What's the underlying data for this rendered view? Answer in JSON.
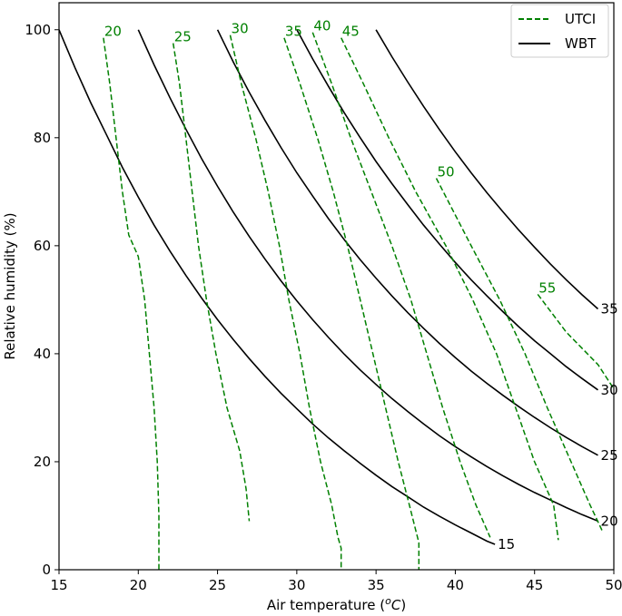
{
  "chart_data": {
    "type": "line",
    "title": "",
    "xlabel": "Air temperature (",
    "xlabel_unit_sup": "o",
    "xlabel_unit": "C)",
    "ylabel": "Relative humidity (%)",
    "xlim": [
      15,
      50
    ],
    "ylim": [
      0,
      105
    ],
    "xticks": [
      15,
      20,
      25,
      30,
      35,
      40,
      45,
      50
    ],
    "yticks": [
      0,
      20,
      40,
      60,
      80,
      100
    ],
    "legend": {
      "placement": "top-right",
      "entries": [
        {
          "name": "UTCI",
          "style": "dashed",
          "color": "#008000"
        },
        {
          "name": "WBT",
          "style": "solid",
          "color": "#000000"
        }
      ]
    },
    "colors": {
      "utci": "#008000",
      "wbt": "#000000"
    },
    "wbt_series": [
      {
        "name": "15",
        "label": "15",
        "points": [
          [
            15,
            100
          ],
          [
            16,
            93
          ],
          [
            17,
            86.5
          ],
          [
            18,
            80.5
          ],
          [
            19,
            74.5
          ],
          [
            20,
            69
          ],
          [
            21,
            63.8
          ],
          [
            22,
            59
          ],
          [
            23,
            54.5
          ],
          [
            24,
            50.3
          ],
          [
            25,
            46.3
          ],
          [
            26,
            42.6
          ],
          [
            27,
            39.1
          ],
          [
            28,
            35.8
          ],
          [
            29,
            32.7
          ],
          [
            30,
            29.8
          ],
          [
            31,
            27
          ],
          [
            32,
            24.4
          ],
          [
            33,
            22
          ],
          [
            34,
            19.7
          ],
          [
            35,
            17.5
          ],
          [
            36,
            15.4
          ],
          [
            37,
            13.5
          ],
          [
            38,
            11.6
          ],
          [
            39,
            9.9
          ],
          [
            40,
            8.3
          ],
          [
            41,
            6.8
          ],
          [
            42,
            5.3
          ],
          [
            42.5,
            4.7
          ]
        ]
      },
      {
        "name": "20",
        "label": "20",
        "points": [
          [
            20,
            100
          ],
          [
            21,
            93.5
          ],
          [
            22,
            87.4
          ],
          [
            23,
            81.6
          ],
          [
            24,
            76.1
          ],
          [
            25,
            71
          ],
          [
            26,
            66.2
          ],
          [
            27,
            61.7
          ],
          [
            28,
            57.5
          ],
          [
            29,
            53.5
          ],
          [
            30,
            49.8
          ],
          [
            31,
            46.3
          ],
          [
            32,
            43
          ],
          [
            33,
            39.9
          ],
          [
            34,
            37
          ],
          [
            35,
            34.3
          ],
          [
            36,
            31.7
          ],
          [
            37,
            29.3
          ],
          [
            38,
            27
          ],
          [
            39,
            24.8
          ],
          [
            40,
            22.8
          ],
          [
            41,
            20.9
          ],
          [
            42,
            19.1
          ],
          [
            43,
            17.4
          ],
          [
            44,
            15.8
          ],
          [
            45,
            14.3
          ],
          [
            46,
            12.9
          ],
          [
            47,
            11.5
          ],
          [
            48,
            10.2
          ],
          [
            49,
            9
          ]
        ]
      },
      {
        "name": "25",
        "label": "25",
        "points": [
          [
            25,
            100
          ],
          [
            26,
            94
          ],
          [
            27,
            88.4
          ],
          [
            28,
            83.2
          ],
          [
            29,
            78.2
          ],
          [
            30,
            73.5
          ],
          [
            31,
            69.2
          ],
          [
            32,
            65
          ],
          [
            33,
            61.1
          ],
          [
            34,
            57.4
          ],
          [
            35,
            54
          ],
          [
            36,
            50.7
          ],
          [
            37,
            47.6
          ],
          [
            38,
            44.7
          ],
          [
            39,
            41.9
          ],
          [
            40,
            39.3
          ],
          [
            41,
            36.8
          ],
          [
            42,
            34.5
          ],
          [
            43,
            32.3
          ],
          [
            44,
            30.2
          ],
          [
            45,
            28.2
          ],
          [
            46,
            26.3
          ],
          [
            47,
            24.5
          ],
          [
            48,
            22.8
          ],
          [
            49,
            21.2
          ]
        ]
      },
      {
        "name": "30",
        "label": "30",
        "points": [
          [
            30,
            100
          ],
          [
            31,
            94.6
          ],
          [
            32,
            89.5
          ],
          [
            33,
            84.6
          ],
          [
            34,
            80
          ],
          [
            35,
            75.6
          ],
          [
            36,
            71.5
          ],
          [
            37,
            67.6
          ],
          [
            38,
            63.8
          ],
          [
            39,
            60.3
          ],
          [
            40,
            56.9
          ],
          [
            41,
            53.7
          ],
          [
            42,
            50.7
          ],
          [
            43,
            47.8
          ],
          [
            44,
            45
          ],
          [
            45,
            42.4
          ],
          [
            46,
            40
          ],
          [
            47,
            37.6
          ],
          [
            48,
            35.4
          ],
          [
            49,
            33.3
          ]
        ]
      },
      {
        "name": "35",
        "label": "35",
        "points": [
          [
            35,
            100
          ],
          [
            36,
            95
          ],
          [
            37,
            90.3
          ],
          [
            38,
            85.8
          ],
          [
            39,
            81.5
          ],
          [
            40,
            77.4
          ],
          [
            41,
            73.5
          ],
          [
            42,
            69.8
          ],
          [
            43,
            66.3
          ],
          [
            44,
            62.9
          ],
          [
            45,
            59.7
          ],
          [
            46,
            56.6
          ],
          [
            47,
            53.7
          ],
          [
            48,
            50.9
          ],
          [
            49,
            48.3
          ]
        ]
      }
    ],
    "utci_series": [
      {
        "name": "20",
        "label": "20",
        "points": [
          [
            17.8,
            98.5
          ],
          [
            18.2,
            90
          ],
          [
            18.6,
            80
          ],
          [
            19,
            70
          ],
          [
            19.4,
            62
          ],
          [
            20,
            58
          ],
          [
            20.4,
            50
          ],
          [
            20.7,
            40
          ],
          [
            21,
            30
          ],
          [
            21.2,
            20
          ],
          [
            21.3,
            10
          ],
          [
            21.3,
            0
          ]
        ]
      },
      {
        "name": "25",
        "label": "25",
        "points": [
          [
            22.2,
            97.5
          ],
          [
            22.6,
            90
          ],
          [
            23,
            80
          ],
          [
            23.4,
            70
          ],
          [
            23.8,
            60
          ],
          [
            24.3,
            50
          ],
          [
            24.9,
            40
          ],
          [
            25.6,
            30
          ],
          [
            26.4,
            22
          ],
          [
            26.8,
            15
          ],
          [
            27,
            9
          ]
        ]
      },
      {
        "name": "30",
        "label": "30",
        "points": [
          [
            25.8,
            99
          ],
          [
            26.5,
            90
          ],
          [
            27.4,
            80
          ],
          [
            28.2,
            70
          ],
          [
            28.9,
            60
          ],
          [
            29.5,
            50
          ],
          [
            30.2,
            40
          ],
          [
            30.8,
            30
          ],
          [
            31.5,
            20
          ],
          [
            32.2,
            12
          ],
          [
            32.6,
            6
          ],
          [
            32.8,
            4
          ],
          [
            32.8,
            0
          ]
        ]
      },
      {
        "name": "35",
        "label": "35",
        "points": [
          [
            29.2,
            98.5
          ],
          [
            30.2,
            90
          ],
          [
            31.3,
            80
          ],
          [
            32.3,
            70
          ],
          [
            33.2,
            60
          ],
          [
            34,
            50
          ],
          [
            34.8,
            40
          ],
          [
            35.6,
            30
          ],
          [
            36.4,
            20
          ],
          [
            37.1,
            12
          ],
          [
            37.7,
            5
          ],
          [
            37.7,
            0
          ]
        ]
      },
      {
        "name": "40",
        "label": "40",
        "points": [
          [
            31,
            99.5
          ],
          [
            32.2,
            90
          ],
          [
            33.4,
            80
          ],
          [
            34.7,
            70
          ],
          [
            36,
            60
          ],
          [
            37.2,
            50
          ],
          [
            38.2,
            40
          ],
          [
            39.2,
            30
          ],
          [
            40.3,
            20
          ],
          [
            41.3,
            12
          ],
          [
            42.2,
            6
          ]
        ]
      },
      {
        "name": "45",
        "label": "45",
        "points": [
          [
            32.8,
            98.5
          ],
          [
            34.2,
            90
          ],
          [
            35.8,
            80
          ],
          [
            37.5,
            70
          ],
          [
            39.4,
            60
          ],
          [
            41.1,
            50
          ],
          [
            42.6,
            40
          ],
          [
            43.8,
            30
          ],
          [
            45,
            20
          ],
          [
            46.2,
            12
          ],
          [
            46.5,
            5.5
          ]
        ]
      },
      {
        "name": "50",
        "label": "50",
        "points": [
          [
            38.8,
            72.5
          ],
          [
            41,
            60
          ],
          [
            42.8,
            50
          ],
          [
            44.4,
            40
          ],
          [
            45.8,
            30
          ],
          [
            47.3,
            20
          ],
          [
            48.5,
            12
          ],
          [
            49.3,
            7
          ]
        ]
      },
      {
        "name": "55",
        "label": "55",
        "points": [
          [
            45.2,
            51
          ],
          [
            47,
            44
          ],
          [
            49,
            38
          ],
          [
            50,
            33.5
          ]
        ]
      }
    ]
  }
}
